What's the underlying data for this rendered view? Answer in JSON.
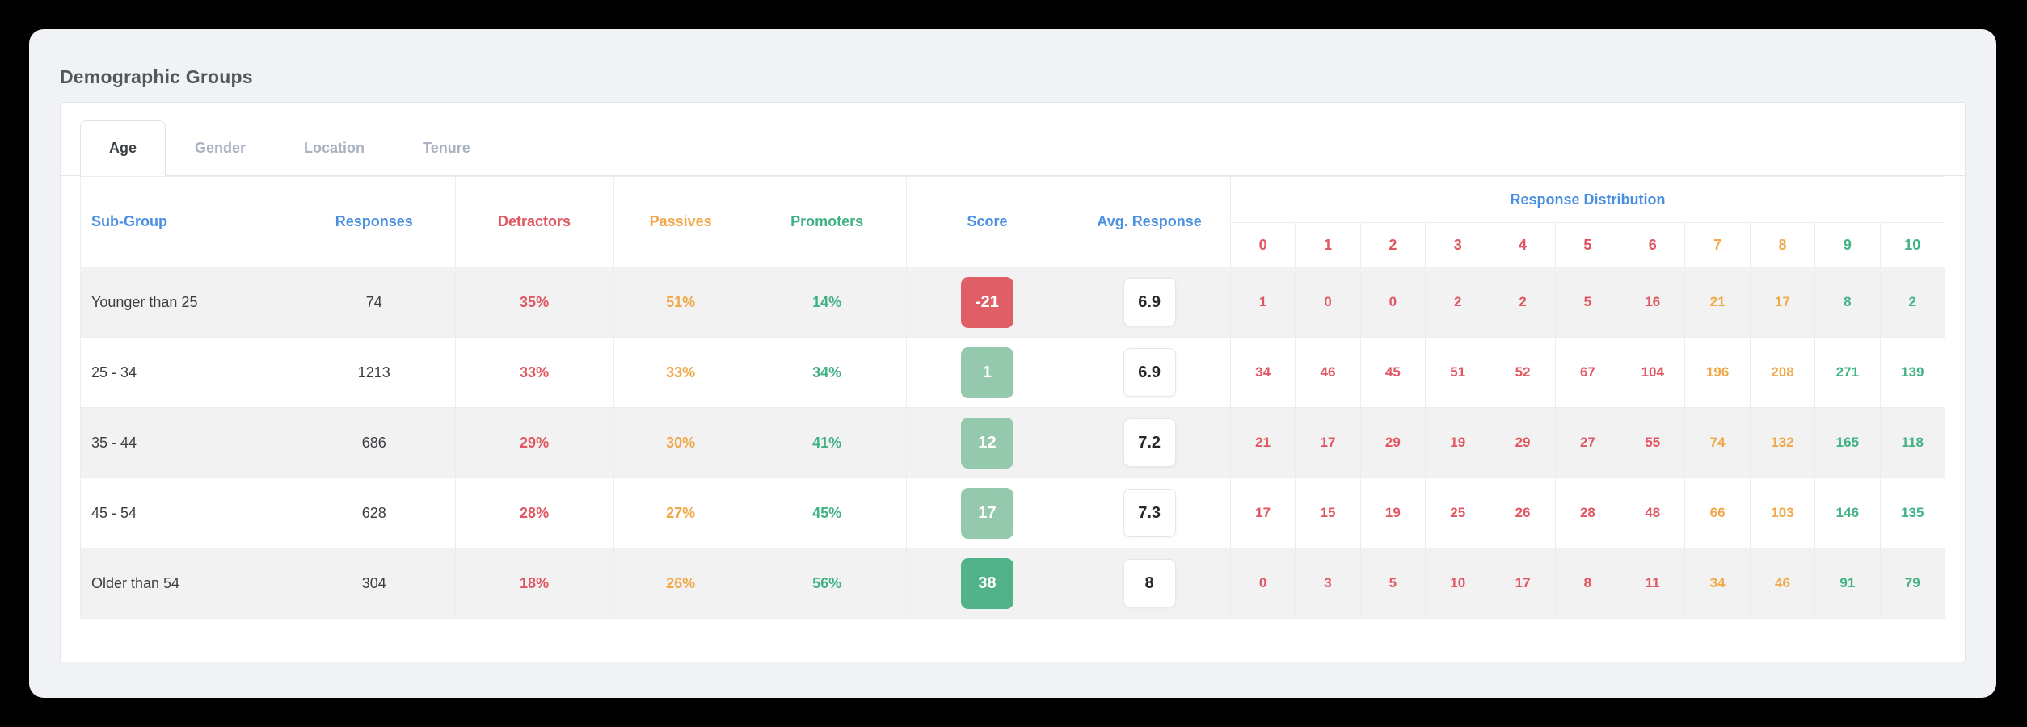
{
  "page": {
    "title": "Demographic Groups"
  },
  "tabs": [
    {
      "label": "Age",
      "active": true
    },
    {
      "label": "Gender",
      "active": false
    },
    {
      "label": "Location",
      "active": false
    },
    {
      "label": "Tenure",
      "active": false
    }
  ],
  "table": {
    "columns": {
      "sub_group": "Sub-Group",
      "responses": "Responses",
      "detractors": "Detractors",
      "passives": "Passives",
      "promoters": "Promoters",
      "score": "Score",
      "avg_response": "Avg. Response",
      "distribution": "Response Distribution",
      "distribution_buckets": [
        "0",
        "1",
        "2",
        "3",
        "4",
        "5",
        "6",
        "7",
        "8",
        "9",
        "10"
      ]
    },
    "distribution_color_map": [
      "red",
      "red",
      "red",
      "red",
      "red",
      "red",
      "red",
      "orange",
      "orange",
      "green",
      "green"
    ],
    "rows": [
      {
        "sub_group": "Younger than 25",
        "responses": "74",
        "detractors": "35%",
        "passives": "51%",
        "promoters": "14%",
        "score": "-21",
        "score_level": "negative",
        "avg_response": "6.9",
        "distribution": [
          "1",
          "0",
          "0",
          "2",
          "2",
          "5",
          "16",
          "21",
          "17",
          "8",
          "2"
        ]
      },
      {
        "sub_group": "25 - 34",
        "responses": "1213",
        "detractors": "33%",
        "passives": "33%",
        "promoters": "34%",
        "score": "1",
        "score_level": "mild",
        "avg_response": "6.9",
        "distribution": [
          "34",
          "46",
          "45",
          "51",
          "52",
          "67",
          "104",
          "196",
          "208",
          "271",
          "139"
        ]
      },
      {
        "sub_group": "35 - 44",
        "responses": "686",
        "detractors": "29%",
        "passives": "30%",
        "promoters": "41%",
        "score": "12",
        "score_level": "mild",
        "avg_response": "7.2",
        "distribution": [
          "21",
          "17",
          "29",
          "19",
          "29",
          "27",
          "55",
          "74",
          "132",
          "165",
          "118"
        ]
      },
      {
        "sub_group": "45 - 54",
        "responses": "628",
        "detractors": "28%",
        "passives": "27%",
        "promoters": "45%",
        "score": "17",
        "score_level": "mild",
        "avg_response": "7.3",
        "distribution": [
          "17",
          "15",
          "19",
          "25",
          "26",
          "28",
          "48",
          "66",
          "103",
          "146",
          "135"
        ]
      },
      {
        "sub_group": "Older than 54",
        "responses": "304",
        "detractors": "18%",
        "passives": "26%",
        "promoters": "56%",
        "score": "38",
        "score_level": "positive",
        "avg_response": "8",
        "distribution": [
          "0",
          "3",
          "5",
          "10",
          "17",
          "8",
          "11",
          "34",
          "46",
          "91",
          "79"
        ]
      }
    ]
  },
  "colors": {
    "blue": "#4a90e2",
    "red": "#e05661",
    "orange": "#efa94a",
    "green": "#42b286",
    "score_negative": "#e05f66",
    "score_mild": "#94c9ae",
    "score_positive": "#52b28a"
  }
}
